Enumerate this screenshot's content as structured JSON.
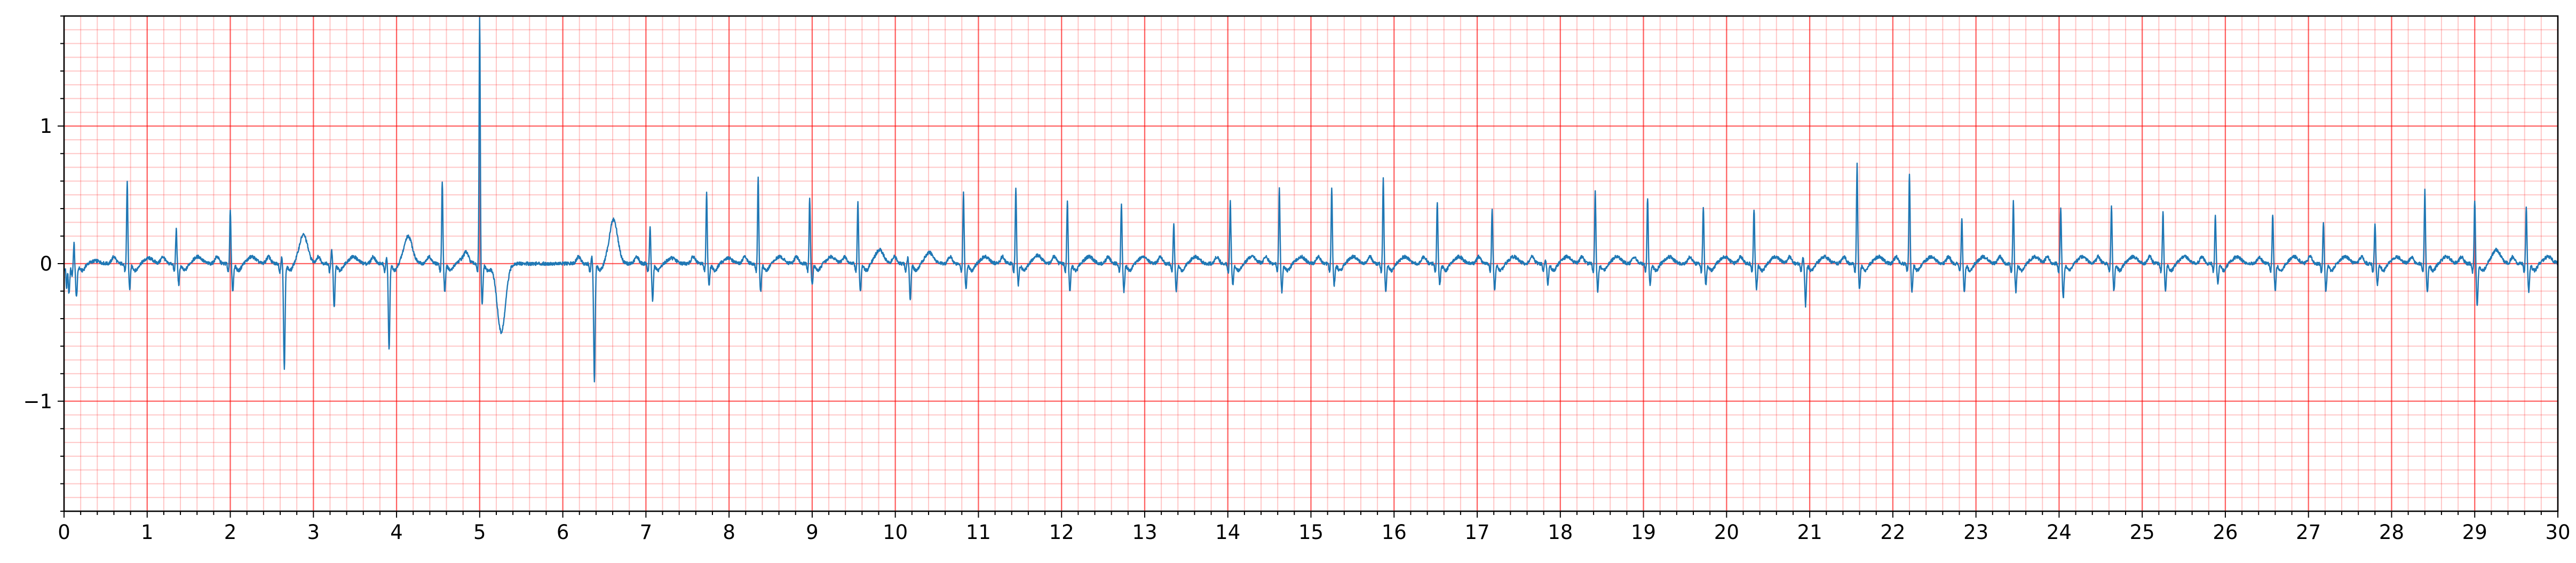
{
  "chart_data": {
    "type": "line",
    "title": "",
    "xlabel": "",
    "ylabel": "",
    "xlim": [
      0,
      30
    ],
    "ylim": [
      -1.8,
      1.8
    ],
    "xticks": [
      0,
      1,
      2,
      3,
      4,
      5,
      6,
      7,
      8,
      9,
      10,
      11,
      12,
      13,
      14,
      15,
      16,
      17,
      18,
      19,
      20,
      21,
      22,
      23,
      24,
      25,
      26,
      27,
      28,
      29,
      30
    ],
    "xtick_labels": [
      "0",
      "1",
      "2",
      "3",
      "4",
      "5",
      "6",
      "7",
      "8",
      "9",
      "10",
      "11",
      "12",
      "13",
      "14",
      "15",
      "16",
      "17",
      "18",
      "19",
      "20",
      "21",
      "22",
      "23",
      "24",
      "25",
      "26",
      "27",
      "28",
      "29",
      "30"
    ],
    "yticks": [
      -1,
      0,
      1
    ],
    "ytick_labels": [
      "−1",
      "0",
      "1"
    ],
    "x_major_grid_step": 1,
    "x_minor_grid_step": 0.2,
    "y_major_grid_step": 1,
    "y_minor_grid_step": 0.1,
    "grid": true,
    "grid_color": "#ff0000",
    "line_color": "#1f77b4",
    "baseline": 0,
    "beats": [
      {
        "t": 0.03,
        "r": -0.18,
        "s": -0.22,
        "t_wave": 0.0
      },
      {
        "t": 0.12,
        "r": 0.2,
        "s": -0.2,
        "t_wave": 0.02
      },
      {
        "t": 0.76,
        "r": 0.6,
        "s": -0.18,
        "t_wave": 0.04
      },
      {
        "t": 1.35,
        "r": 0.25,
        "s": -0.15,
        "t_wave": 0.05
      },
      {
        "t": 2.0,
        "r": 0.38,
        "s": -0.2,
        "t_wave": 0.05
      },
      {
        "t": 2.62,
        "r": 0.05,
        "s": -0.77,
        "t_wave": 0.21
      },
      {
        "t": 3.22,
        "r": 0.1,
        "s": -0.32,
        "t_wave": 0.05
      },
      {
        "t": 3.88,
        "r": 0.05,
        "s": -0.62,
        "t_wave": 0.2
      },
      {
        "t": 4.55,
        "r": 0.6,
        "s": -0.2,
        "t_wave": 0.04
      },
      {
        "t": 5.0,
        "r": 1.78,
        "s": -0.3,
        "t_wave": -0.5
      },
      {
        "t": 6.35,
        "r": 0.05,
        "s": -0.85,
        "t_wave": 0.32
      },
      {
        "t": 7.05,
        "r": 0.26,
        "s": -0.26,
        "t_wave": 0.04
      },
      {
        "t": 7.73,
        "r": 0.52,
        "s": -0.15,
        "t_wave": 0.04
      },
      {
        "t": 8.35,
        "r": 0.62,
        "s": -0.2,
        "t_wave": 0.05
      },
      {
        "t": 8.97,
        "r": 0.48,
        "s": -0.15,
        "t_wave": 0.05
      },
      {
        "t": 9.55,
        "r": 0.45,
        "s": -0.2,
        "t_wave": 0.1
      },
      {
        "t": 10.15,
        "r": 0.05,
        "s": -0.26,
        "t_wave": 0.08
      },
      {
        "t": 10.82,
        "r": 0.52,
        "s": -0.18,
        "t_wave": 0.05
      },
      {
        "t": 11.45,
        "r": 0.55,
        "s": -0.15,
        "t_wave": 0.06
      },
      {
        "t": 12.07,
        "r": 0.46,
        "s": -0.2,
        "t_wave": 0.05
      },
      {
        "t": 12.72,
        "r": 0.44,
        "s": -0.2,
        "t_wave": 0.05
      },
      {
        "t": 13.35,
        "r": 0.3,
        "s": -0.2,
        "t_wave": 0.05
      },
      {
        "t": 14.03,
        "r": 0.45,
        "s": -0.15,
        "t_wave": 0.05
      },
      {
        "t": 14.62,
        "r": 0.55,
        "s": -0.2,
        "t_wave": 0.05
      },
      {
        "t": 15.25,
        "r": 0.55,
        "s": -0.15,
        "t_wave": 0.05
      },
      {
        "t": 15.87,
        "r": 0.62,
        "s": -0.2,
        "t_wave": 0.05
      },
      {
        "t": 16.52,
        "r": 0.45,
        "s": -0.15,
        "t_wave": 0.05
      },
      {
        "t": 17.18,
        "r": 0.4,
        "s": -0.18,
        "t_wave": 0.05
      },
      {
        "t": 17.82,
        "r": 0.03,
        "s": -0.15,
        "t_wave": 0.05
      },
      {
        "t": 18.42,
        "r": 0.52,
        "s": -0.2,
        "t_wave": 0.05
      },
      {
        "t": 19.05,
        "r": 0.48,
        "s": -0.15,
        "t_wave": 0.05
      },
      {
        "t": 19.72,
        "r": 0.42,
        "s": -0.15,
        "t_wave": 0.05
      },
      {
        "t": 20.33,
        "r": 0.4,
        "s": -0.18,
        "t_wave": 0.05
      },
      {
        "t": 20.92,
        "r": 0.05,
        "s": -0.3,
        "t_wave": 0.05
      },
      {
        "t": 21.57,
        "r": 0.72,
        "s": -0.18,
        "t_wave": 0.05
      },
      {
        "t": 22.2,
        "r": 0.66,
        "s": -0.2,
        "t_wave": 0.05
      },
      {
        "t": 22.83,
        "r": 0.33,
        "s": -0.2,
        "t_wave": 0.05
      },
      {
        "t": 23.45,
        "r": 0.45,
        "s": -0.2,
        "t_wave": 0.05
      },
      {
        "t": 24.02,
        "r": 0.4,
        "s": -0.25,
        "t_wave": 0.05
      },
      {
        "t": 24.63,
        "r": 0.42,
        "s": -0.2,
        "t_wave": 0.05
      },
      {
        "t": 25.25,
        "r": 0.38,
        "s": -0.2,
        "t_wave": 0.05
      },
      {
        "t": 25.88,
        "r": 0.35,
        "s": -0.15,
        "t_wave": 0.05
      },
      {
        "t": 26.57,
        "r": 0.36,
        "s": -0.2,
        "t_wave": 0.05
      },
      {
        "t": 27.18,
        "r": 0.3,
        "s": -0.2,
        "t_wave": 0.05
      },
      {
        "t": 27.8,
        "r": 0.3,
        "s": -0.15,
        "t_wave": 0.05
      },
      {
        "t": 28.4,
        "r": 0.53,
        "s": -0.2,
        "t_wave": 0.05
      },
      {
        "t": 29.0,
        "r": 0.46,
        "s": -0.3,
        "t_wave": 0.1
      },
      {
        "t": 29.62,
        "r": 0.42,
        "s": -0.2,
        "t_wave": 0.05
      }
    ]
  }
}
